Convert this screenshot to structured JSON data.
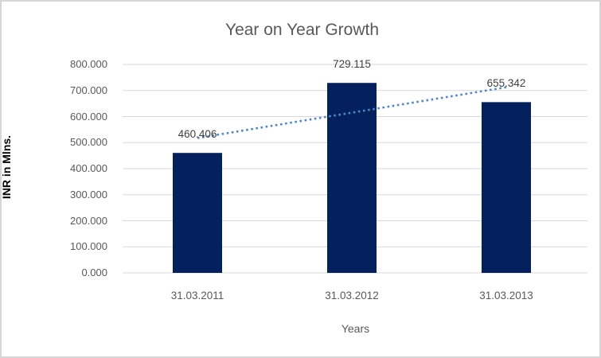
{
  "chart_data": {
    "type": "bar",
    "title": "Year on Year Growth",
    "xlabel": "Years",
    "ylabel": "INR in Mlns.",
    "categories": [
      "31.03.2011",
      "31.03.2012",
      "31.03.2013"
    ],
    "values": [
      460.406,
      729.115,
      655.342
    ],
    "data_labels": [
      "460.406",
      "729.115",
      "655.342"
    ],
    "y_ticks": [
      "0.000",
      "100.000",
      "200.000",
      "300.000",
      "400.000",
      "500.000",
      "600.000",
      "700.000",
      "800.000"
    ],
    "ylim": [
      0,
      800
    ],
    "y_step": 100,
    "grid": true,
    "legend": "none",
    "trendline": {
      "type": "linear",
      "style": "dotted"
    },
    "colors": {
      "bar": "#04215e",
      "trendline": "#4f86c9",
      "gridline": "#d9d9d9",
      "title_text": "#595959",
      "tick_text": "#595959",
      "data_label_text": "#3f3f3f",
      "axis_title_text": "#000000",
      "frame_border": "#d6d6d6",
      "background": "#ffffff"
    }
  }
}
